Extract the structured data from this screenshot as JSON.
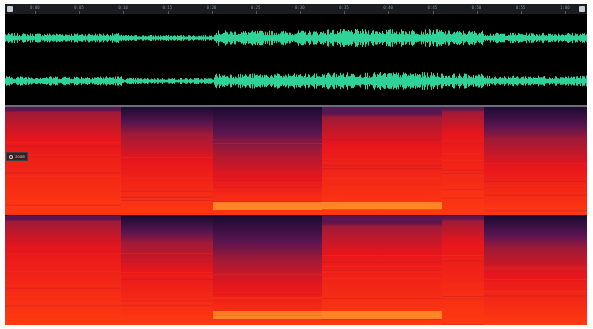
{
  "editor": {
    "ruler": {
      "ticks": [
        "0:00",
        "0:05",
        "0:10",
        "0:15",
        "0:20",
        "0:25",
        "0:30",
        "0:35",
        "0:40",
        "0:45",
        "0:50",
        "0:55",
        "1:00"
      ],
      "icons": {
        "left": "playhead-icon",
        "right": "menu-icon"
      }
    },
    "waveform": {
      "color": "#2fd39a",
      "channels": [
        "left",
        "right"
      ],
      "segments": [
        {
          "start": 0.0,
          "end": 0.2,
          "level": 0.55
        },
        {
          "start": 0.2,
          "end": 0.358,
          "level": 0.35
        },
        {
          "start": 0.358,
          "end": 0.545,
          "level": 0.85
        },
        {
          "start": 0.545,
          "end": 0.75,
          "level": 1.0
        },
        {
          "start": 0.75,
          "end": 0.823,
          "level": 0.85
        },
        {
          "start": 0.823,
          "end": 1.0,
          "level": 0.6
        }
      ]
    },
    "spectral": {
      "colors": {
        "dark": "#1a0b33",
        "purple": "#5b1550",
        "magenta": "#a01a37",
        "red": "#e8161c",
        "hot": "#ff3a10",
        "orange": "#ffa12a"
      },
      "segments": [
        {
          "start": 0.0,
          "end": 0.2,
          "dark_fraction": 0.05
        },
        {
          "start": 0.2,
          "end": 0.358,
          "dark_fraction": 0.25
        },
        {
          "start": 0.358,
          "end": 0.545,
          "dark_fraction": 0.4
        },
        {
          "start": 0.545,
          "end": 0.75,
          "dark_fraction": 0.1
        },
        {
          "start": 0.75,
          "end": 0.823,
          "dark_fraction": 0.0
        },
        {
          "start": 0.823,
          "end": 1.0,
          "dark_fraction": 0.3
        }
      ]
    },
    "zoom_hud": {
      "icon": "zoom-icon",
      "text": "zoom"
    }
  }
}
